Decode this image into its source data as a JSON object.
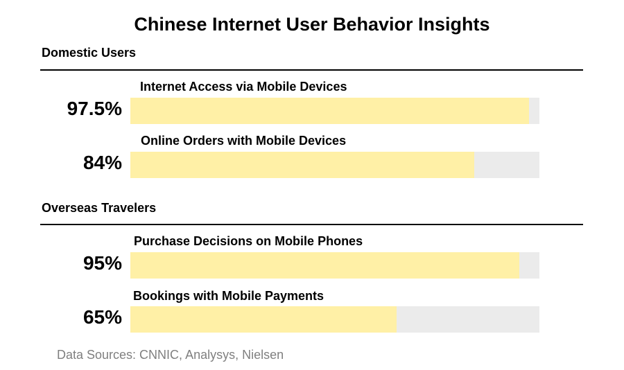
{
  "chart_data": {
    "type": "bar",
    "orientation": "horizontal",
    "title": "Chinese Internet User Behavior Insights",
    "max": 100,
    "sections": [
      {
        "name": "Domestic Users",
        "bars": [
          {
            "label": "Internet Access via Mobile Devices",
            "value": 97.5,
            "value_label": "97.5%"
          },
          {
            "label": "Online Orders with Mobile Devices",
            "value": 84,
            "value_label": "84%"
          }
        ]
      },
      {
        "name": "Overseas Travelers",
        "bars": [
          {
            "label": "Purchase Decisions on Mobile Phones",
            "value": 95,
            "value_label": "95%"
          },
          {
            "label": "Bookings with Mobile Payments",
            "value": 65,
            "value_label": "65%"
          }
        ]
      }
    ],
    "source": "Data Sources: CNNIC, Analysys, Nielsen",
    "colors": {
      "fill": "#fff0a6",
      "track": "#ebebeb"
    }
  }
}
